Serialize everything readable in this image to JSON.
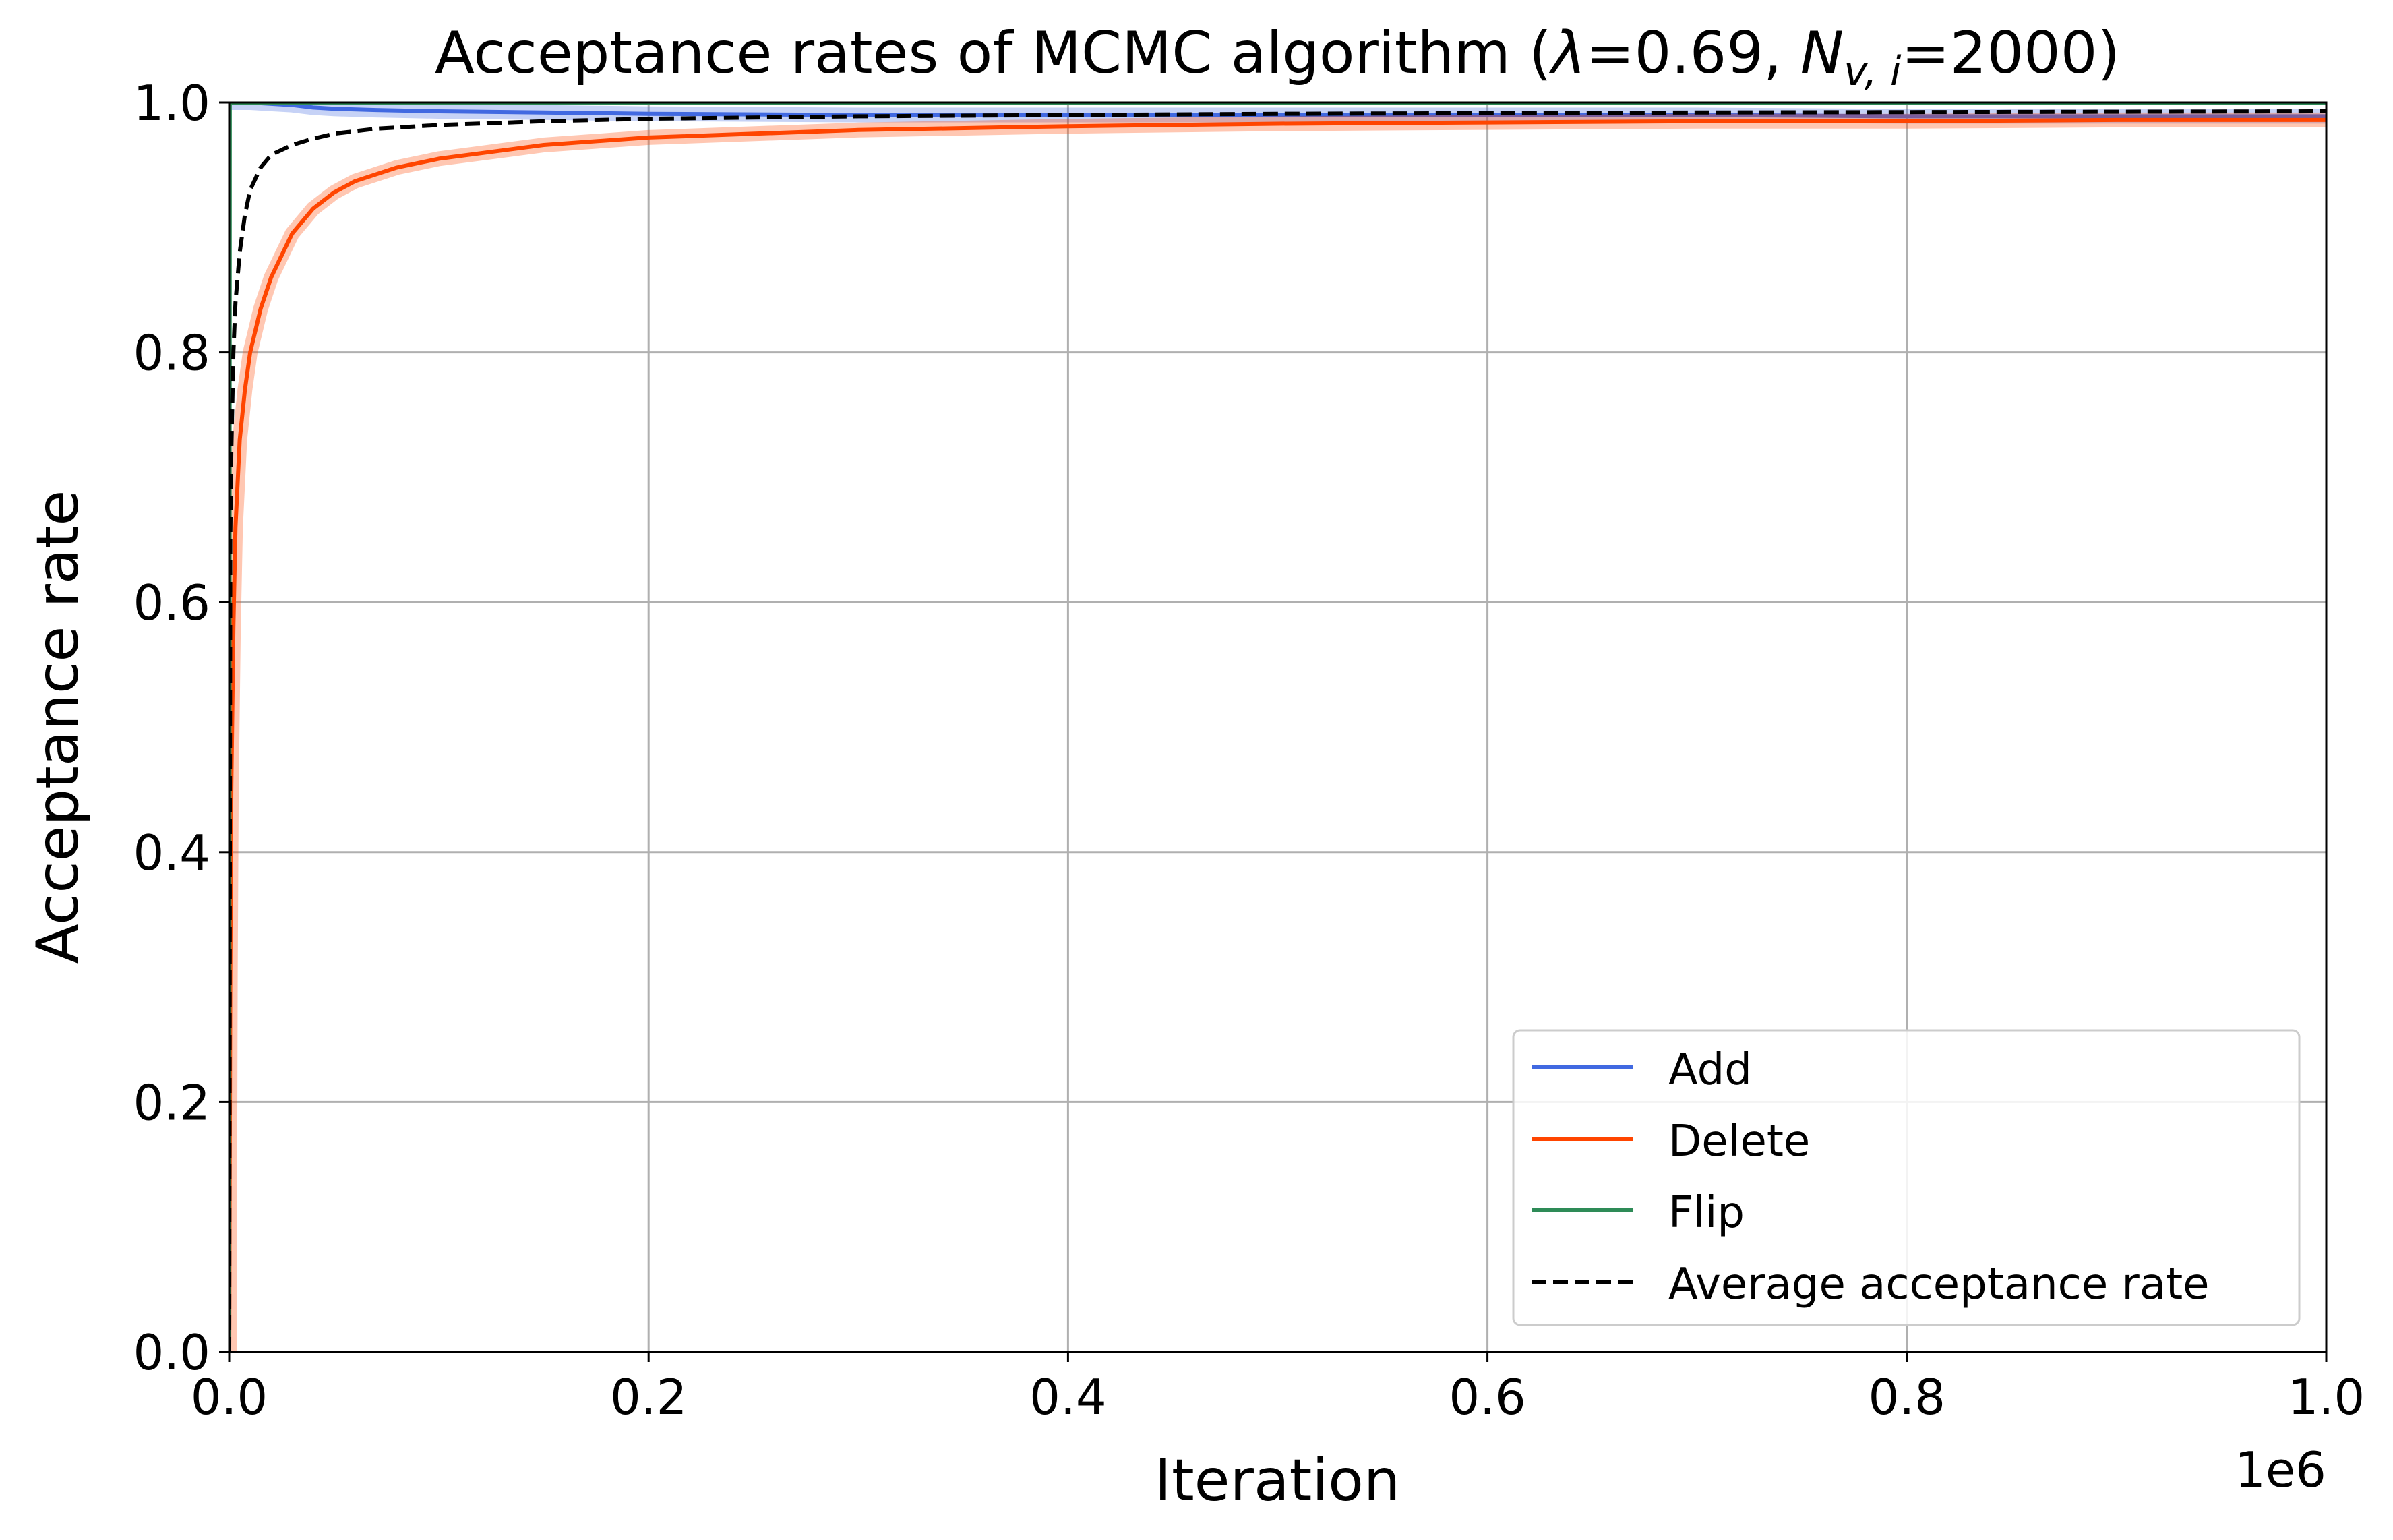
{
  "chart_data": {
    "type": "line",
    "title_prefix": "Acceptance rates of MCMC algorithm (",
    "title_lambda": "λ",
    "title_mid": "=0.69, ",
    "title_N": "N",
    "title_sub": "v, i",
    "title_suffix": "=2000)",
    "xlabel": "Iteration",
    "ylabel": "Acceptance rate",
    "x_offset_text": "1e6",
    "xlim": [
      0,
      1
    ],
    "ylim": [
      0,
      1
    ],
    "x_unit_multiplier": 1000000,
    "xticks": [
      0.0,
      0.2,
      0.4,
      0.6,
      0.8,
      1.0
    ],
    "xtick_labels": [
      "0.0",
      "0.2",
      "0.4",
      "0.6",
      "0.8",
      "1.0"
    ],
    "yticks": [
      0.0,
      0.2,
      0.4,
      0.6,
      0.8,
      1.0
    ],
    "ytick_labels": [
      "0.0",
      "0.2",
      "0.4",
      "0.6",
      "0.8",
      "1.0"
    ],
    "grid": true,
    "legend_position": "lower-right",
    "series": [
      {
        "name": "Add",
        "color": "#4169e1",
        "dash": "solid",
        "band": true,
        "points": [
          [
            0.0,
            1.0
          ],
          [
            0.01,
            1.0
          ],
          [
            0.02,
            0.999
          ],
          [
            0.03,
            0.998
          ],
          [
            0.04,
            0.996
          ],
          [
            0.05,
            0.995
          ],
          [
            0.07,
            0.994
          ],
          [
            0.1,
            0.993
          ],
          [
            0.15,
            0.992
          ],
          [
            0.2,
            0.991
          ],
          [
            0.3,
            0.99
          ],
          [
            0.4,
            0.99
          ],
          [
            0.5,
            0.99
          ],
          [
            0.6,
            0.99
          ],
          [
            0.7,
            0.99
          ],
          [
            0.8,
            0.989
          ],
          [
            0.9,
            0.989
          ],
          [
            1.0,
            0.989
          ]
        ]
      },
      {
        "name": "Delete",
        "color": "#ff4500",
        "dash": "solid",
        "band": true,
        "points": [
          [
            0.0,
            0.0
          ],
          [
            0.0005,
            0.3
          ],
          [
            0.001,
            0.45
          ],
          [
            0.002,
            0.58
          ],
          [
            0.003,
            0.66
          ],
          [
            0.005,
            0.73
          ],
          [
            0.0075,
            0.77
          ],
          [
            0.01,
            0.8
          ],
          [
            0.015,
            0.835
          ],
          [
            0.02,
            0.86
          ],
          [
            0.03,
            0.895
          ],
          [
            0.04,
            0.915
          ],
          [
            0.05,
            0.928
          ],
          [
            0.06,
            0.937
          ],
          [
            0.08,
            0.948
          ],
          [
            0.1,
            0.955
          ],
          [
            0.15,
            0.966
          ],
          [
            0.2,
            0.972
          ],
          [
            0.3,
            0.978
          ],
          [
            0.4,
            0.981
          ],
          [
            0.5,
            0.983
          ],
          [
            0.6,
            0.984
          ],
          [
            0.7,
            0.985
          ],
          [
            0.8,
            0.985
          ],
          [
            0.9,
            0.986
          ],
          [
            1.0,
            0.986
          ]
        ]
      },
      {
        "name": "Flip",
        "color": "#2e8b57",
        "dash": "solid",
        "band": false,
        "points": [
          [
            0.0,
            0.0
          ],
          [
            0.0003,
            0.999
          ],
          [
            0.0006,
            1.0
          ],
          [
            1.0,
            1.0
          ]
        ]
      },
      {
        "name": "Average acceptance rate",
        "color": "#000000",
        "dash": "dashed",
        "band": false,
        "points": [
          [
            0.0,
            0.0
          ],
          [
            0.0005,
            0.65
          ],
          [
            0.001,
            0.72
          ],
          [
            0.002,
            0.8
          ],
          [
            0.003,
            0.84
          ],
          [
            0.005,
            0.88
          ],
          [
            0.0075,
            0.91
          ],
          [
            0.01,
            0.93
          ],
          [
            0.015,
            0.948
          ],
          [
            0.02,
            0.958
          ],
          [
            0.03,
            0.966
          ],
          [
            0.04,
            0.971
          ],
          [
            0.05,
            0.975
          ],
          [
            0.07,
            0.979
          ],
          [
            0.1,
            0.982
          ],
          [
            0.15,
            0.985
          ],
          [
            0.2,
            0.987
          ],
          [
            0.3,
            0.989
          ],
          [
            0.5,
            0.991
          ],
          [
            0.7,
            0.992
          ],
          [
            1.0,
            0.993
          ]
        ]
      }
    ]
  }
}
